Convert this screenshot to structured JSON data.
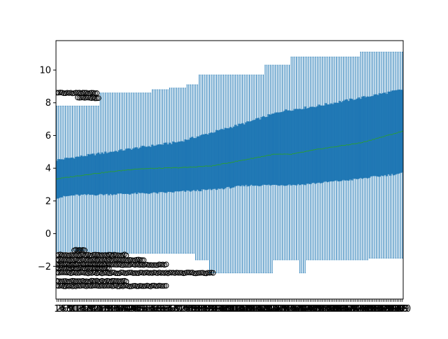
{
  "chart_data": {
    "type": "boxplot",
    "title": "",
    "xlabel": "",
    "ylabel": "",
    "ylim": [
      -4,
      11.8
    ],
    "yticks": [
      -2,
      0,
      2,
      4,
      6,
      8,
      10
    ],
    "ytick_labels": [
      "−2",
      "0",
      "2",
      "4",
      "6",
      "8",
      "10"
    ],
    "x_category_count": 200,
    "grid": false,
    "legend": "none",
    "box_color": "#1f77b4",
    "median_color": "#2ca02c",
    "flier_color": "#000000",
    "series": {
      "median_keypoints": [
        [
          0,
          3.35
        ],
        [
          20,
          3.65
        ],
        [
          45,
          3.95
        ],
        [
          75,
          4.05
        ],
        [
          90,
          4.15
        ],
        [
          100,
          4.35
        ],
        [
          110,
          4.55
        ],
        [
          125,
          4.85
        ],
        [
          135,
          4.85
        ],
        [
          150,
          5.15
        ],
        [
          175,
          5.55
        ],
        [
          199,
          6.25
        ]
      ],
      "q3_keypoints": [
        [
          0,
          4.5
        ],
        [
          25,
          4.9
        ],
        [
          50,
          5.3
        ],
        [
          70,
          5.6
        ],
        [
          90,
          6.2
        ],
        [
          110,
          6.8
        ],
        [
          130,
          7.5
        ],
        [
          150,
          7.8
        ],
        [
          175,
          8.3
        ],
        [
          199,
          8.8
        ]
      ],
      "q1_keypoints": [
        [
          0,
          2.2
        ],
        [
          10,
          2.35
        ],
        [
          60,
          2.5
        ],
        [
          90,
          2.7
        ],
        [
          110,
          2.95
        ],
        [
          140,
          3.0
        ],
        [
          170,
          3.3
        ],
        [
          199,
          3.7
        ]
      ],
      "upper_whisker_steps": [
        [
          0,
          7.8
        ],
        [
          25,
          8.6
        ],
        [
          55,
          8.8
        ],
        [
          65,
          8.9
        ],
        [
          75,
          9.1
        ],
        [
          82,
          9.7
        ],
        [
          120,
          10.3
        ],
        [
          135,
          10.8
        ],
        [
          175,
          11.1
        ],
        [
          199,
          11.1
        ]
      ],
      "lower_whisker_steps": [
        [
          0,
          -1.1
        ],
        [
          25,
          -1.2
        ],
        [
          80,
          -1.6
        ],
        [
          88,
          -2.4
        ],
        [
          125,
          -1.6
        ],
        [
          140,
          -2.4
        ],
        [
          144,
          -1.6
        ],
        [
          180,
          -1.5
        ],
        [
          199,
          -1.5
        ]
      ],
      "flier_bands": [
        {
          "x_range": [
            0,
            23
          ],
          "y": 8.6
        },
        {
          "x_range": [
            12,
            24
          ],
          "y": 8.3
        },
        {
          "x_range": [
            10,
            16
          ],
          "y": -1.0
        },
        {
          "x_range": [
            0,
            40
          ],
          "y": -1.3
        },
        {
          "x_range": [
            0,
            50
          ],
          "y": -1.6
        },
        {
          "x_range": [
            0,
            63
          ],
          "y": -1.9
        },
        {
          "x_range": [
            0,
            30
          ],
          "y": -2.1
        },
        {
          "x_range": [
            0,
            90
          ],
          "y": -2.4
        },
        {
          "x_range": [
            0,
            40
          ],
          "y": -2.9
        },
        {
          "x_range": [
            0,
            63
          ],
          "y": -3.2
        }
      ]
    }
  }
}
